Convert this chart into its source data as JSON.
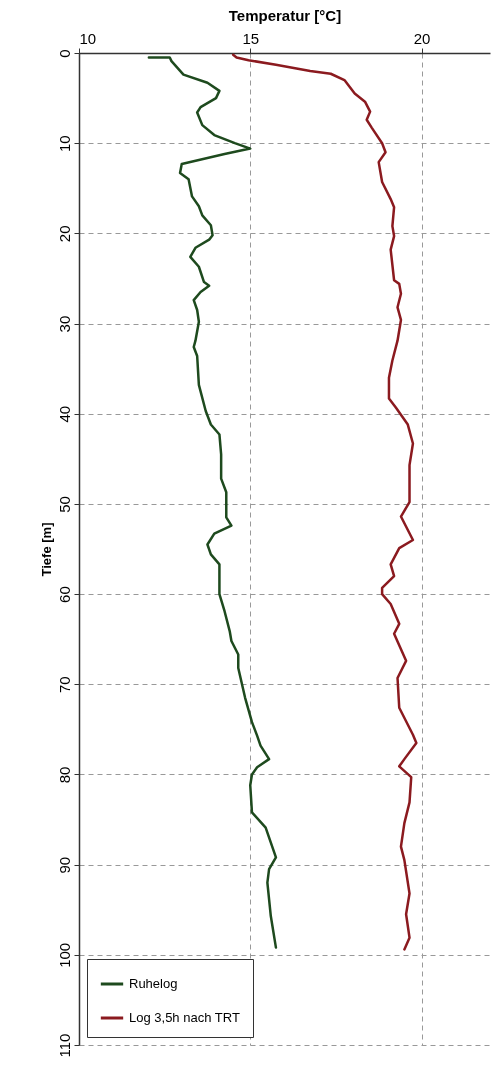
{
  "chart_data": {
    "type": "line",
    "xlabel": "Temperatur [°C]",
    "ylabel": "Tiefe [m]",
    "xlim": [
      10,
      22
    ],
    "xticks": [
      10,
      15,
      20
    ],
    "ylim": [
      110,
      0
    ],
    "yticks": [
      0,
      10,
      20,
      30,
      40,
      50,
      60,
      70,
      80,
      90,
      100,
      110
    ],
    "grid": true,
    "legend": "bottom left",
    "series": [
      {
        "name": "Ruhelog",
        "color": "#1e4a1e",
        "x": [
          12.04,
          12.65,
          12.7,
          13.05,
          13.75,
          14.1,
          14.0,
          13.55,
          13.45,
          13.6,
          13.95,
          14.55,
          15.0,
          14.25,
          13.0,
          12.95,
          13.2,
          13.3,
          13.5,
          13.6,
          13.85,
          13.9,
          13.8,
          13.4,
          13.25,
          13.5,
          13.65,
          13.8,
          13.55,
          13.35,
          13.45,
          13.5,
          13.4,
          13.35,
          13.45,
          13.5,
          13.7,
          13.85,
          14.1,
          14.15,
          14.15,
          14.3,
          14.3,
          14.45,
          13.95,
          13.75,
          13.85,
          14.1,
          14.1,
          14.25,
          14.4,
          14.45,
          14.65,
          14.65,
          14.85,
          15.05,
          15.2,
          15.3,
          15.55,
          15.2,
          15.05,
          15.0,
          15.05,
          15.45,
          15.75,
          15.55,
          15.5,
          15.6,
          15.75
        ],
        "values": [
          0.5,
          0.5,
          0.9,
          2.4,
          3.3,
          4.2,
          5,
          6,
          6.6,
          8,
          9.1,
          10,
          10.6,
          11.2,
          12.3,
          13.3,
          14,
          15.9,
          17,
          18,
          19.1,
          20.2,
          20.7,
          21.6,
          22.6,
          23.7,
          25.4,
          25.8,
          26.5,
          27.4,
          28.5,
          29.8,
          31.9,
          32.6,
          33.6,
          36.8,
          39.7,
          41.2,
          42.3,
          44.5,
          47.2,
          48.7,
          51.5,
          52.4,
          53.3,
          54.5,
          55.6,
          56.7,
          60,
          61.9,
          64.1,
          65.2,
          66.7,
          68.2,
          71.5,
          74.2,
          75.7,
          76.8,
          78.3,
          79.2,
          80,
          81.2,
          84.2,
          85.9,
          89.2,
          90.5,
          92,
          95.7,
          99.2
        ]
      },
      {
        "name": "Log 3,5h nach TRT",
        "color": "#8b1a1f",
        "x": [
          14.5,
          14.6,
          14.95,
          15.75,
          16.75,
          17.35,
          17.75,
          18.05,
          18.35,
          18.5,
          18.4,
          18.55,
          18.85,
          18.95,
          18.75,
          18.85,
          19.1,
          19.2,
          19.15,
          19.2,
          19.1,
          19.2,
          19.35,
          19.4,
          19.3,
          19.4,
          19.3,
          19.15,
          19.05,
          19.05,
          19.25,
          19.6,
          19.75,
          19.65,
          19.65,
          19.4,
          19.75,
          19.35,
          19.1,
          19.2,
          18.85,
          18.85,
          19.1,
          19.35,
          19.2,
          19.55,
          19.3,
          19.35,
          19.75,
          19.85,
          19.5,
          19.35,
          19.7,
          19.65,
          19.5,
          19.4,
          19.5,
          19.65,
          19.55,
          19.65,
          19.5
        ],
        "values": [
          0.2,
          0.5,
          0.8,
          1.3,
          2,
          2.3,
          3,
          4.5,
          5.4,
          6.5,
          7.4,
          8.3,
          10,
          11,
          12.1,
          14.3,
          16.2,
          17.1,
          19.2,
          20.3,
          21.8,
          25.2,
          25.6,
          26.7,
          28.2,
          29.6,
          31.9,
          34.1,
          36,
          38.3,
          39.3,
          41.2,
          43.3,
          45.7,
          49.8,
          51.4,
          54,
          54.9,
          56.7,
          58,
          59.3,
          60,
          61.1,
          63.3,
          64.4,
          67.4,
          69.3,
          72.6,
          75.6,
          76.5,
          78.3,
          79.1,
          80.3,
          83.1,
          85.4,
          88,
          89.5,
          93.2,
          95.5,
          98.1,
          99.4
        ]
      }
    ]
  }
}
